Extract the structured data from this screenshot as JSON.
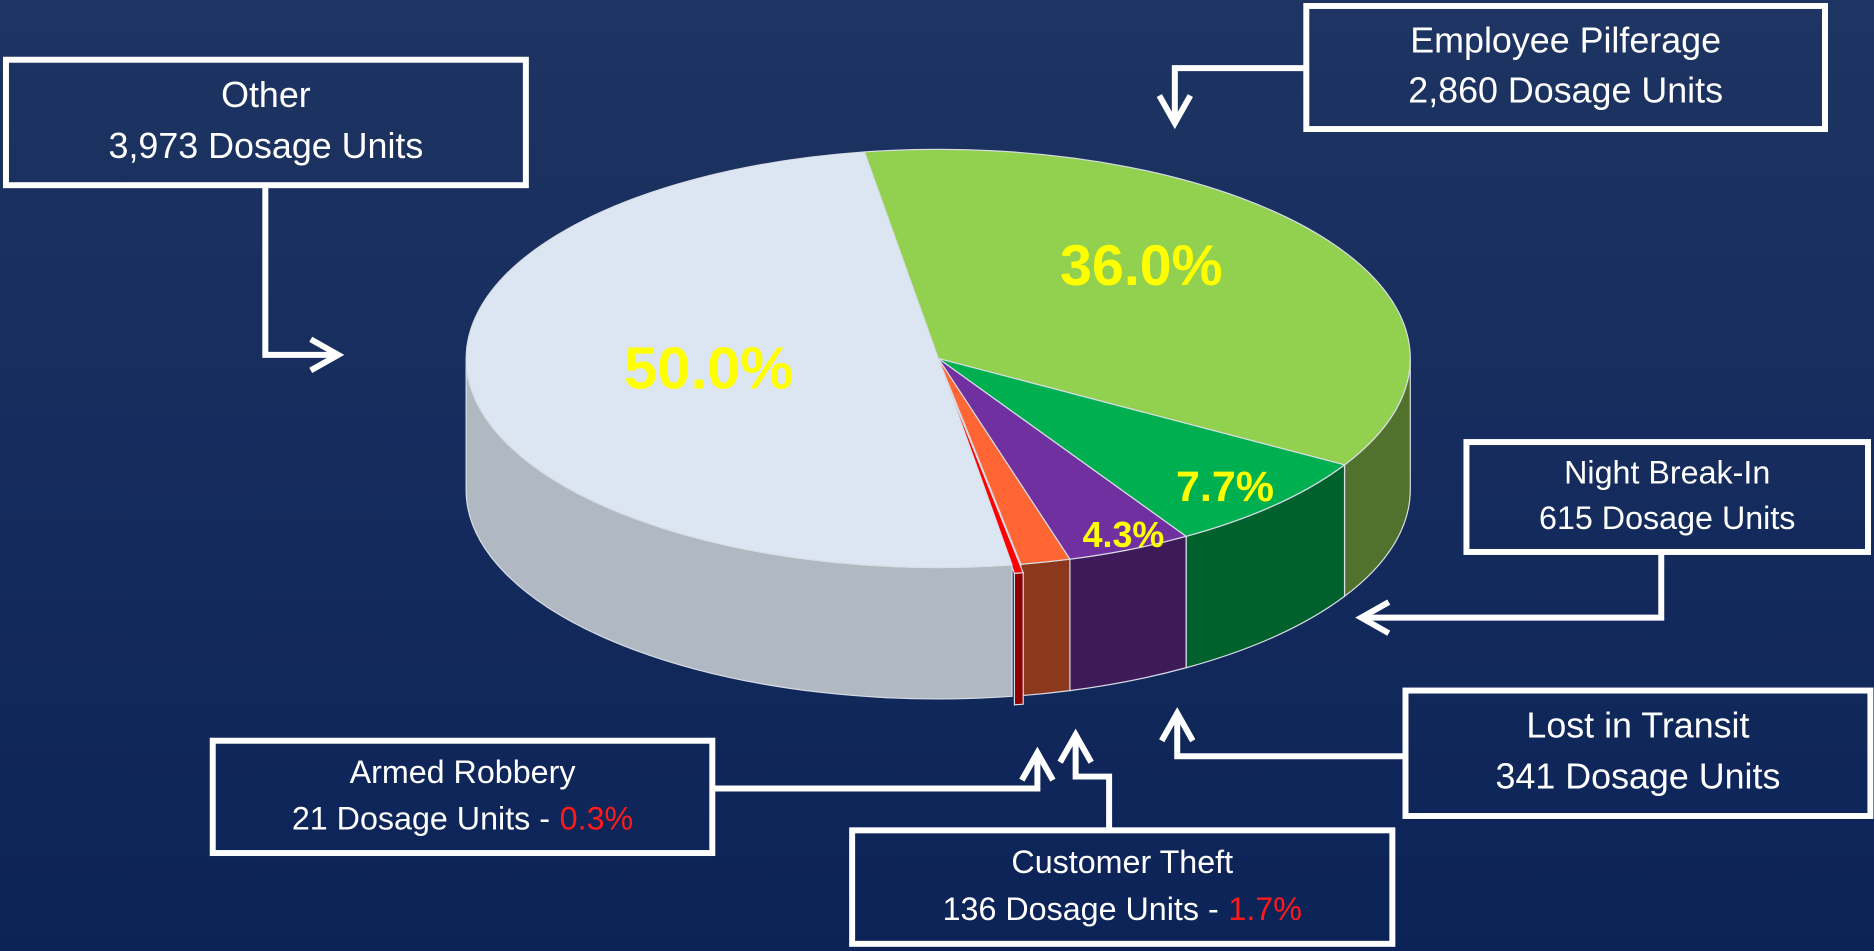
{
  "chart_data": {
    "type": "pie",
    "categories": [
      "Employee Pilferage",
      "Night Break-In",
      "Lost in Transit",
      "Customer Theft",
      "Armed Robbery",
      "Other"
    ],
    "values": [
      36.0,
      7.7,
      4.3,
      1.7,
      0.3,
      50.0
    ],
    "value_labels": [
      "36.0%",
      "7.7%",
      "4.3%",
      "1.7%",
      "0.3%",
      "50.0%"
    ],
    "dosage_units": [
      2860,
      615,
      341,
      136,
      21,
      3973
    ],
    "dosage_unit_labels": [
      "2,860 Dosage Units",
      "615 Dosage Units",
      "341 Dosage Units",
      "136 Dosage Units -",
      "21 Dosage Units -",
      "3,973 Dosage Units"
    ],
    "colors": [
      "#92d050",
      "#00b050",
      "#7030a0",
      "#ff6633",
      "#ff0000",
      "#dce6f2"
    ],
    "explode": [
      false,
      false,
      false,
      false,
      true,
      false
    ]
  }
}
